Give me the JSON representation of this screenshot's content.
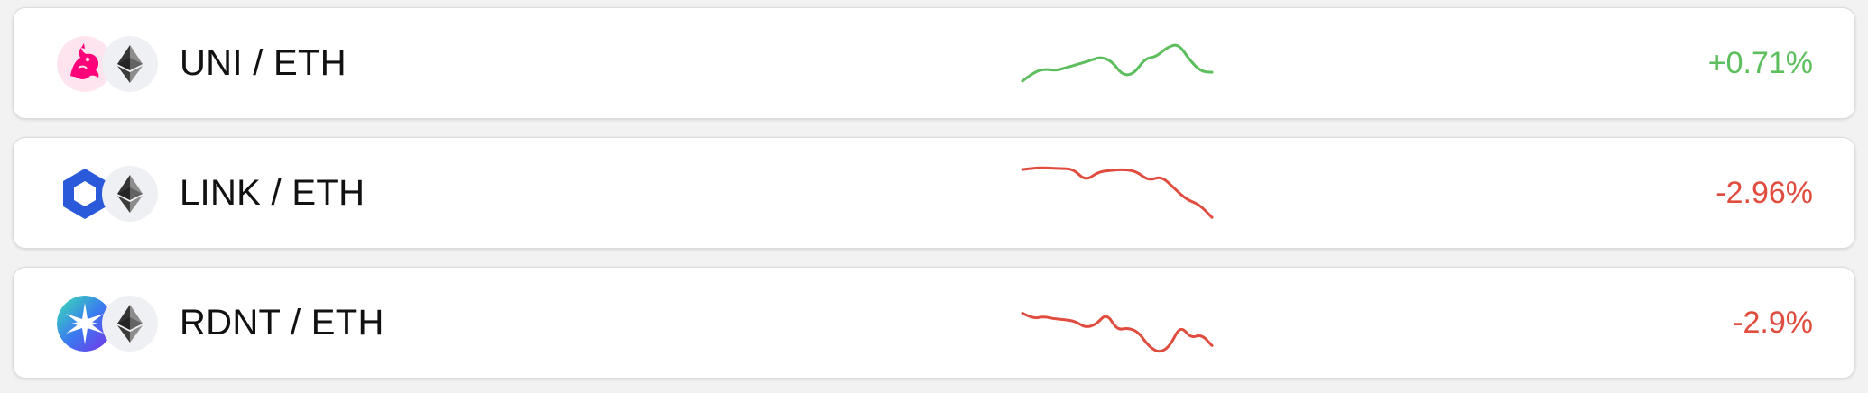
{
  "colors": {
    "up": "#5cbe5c",
    "down": "#e04c3e"
  },
  "pairs": [
    {
      "name": "UNI / ETH",
      "base_icon": "uniswap-unicorn-icon",
      "quote_icon": "ethereum-icon",
      "change": "+0.71%",
      "direction": "up",
      "chart_data": {
        "type": "line",
        "values": [
          30,
          41,
          45,
          43,
          47,
          51,
          55,
          60,
          55,
          37,
          39,
          58,
          60,
          72,
          76,
          56,
          42,
          41
        ]
      }
    },
    {
      "name": "LINK / ETH",
      "base_icon": "chainlink-hexagon-icon",
      "quote_icon": "ethereum-icon",
      "change": "-2.96%",
      "direction": "down",
      "chart_data": {
        "type": "line",
        "values": [
          81,
          83,
          83,
          82,
          82,
          67,
          78,
          80,
          81,
          79,
          67,
          73,
          58,
          44,
          38,
          22
        ]
      }
    },
    {
      "name": "RDNT / ETH",
      "base_icon": "radiant-star-icon",
      "quote_icon": "ethereum-icon",
      "change": "-2.9%",
      "direction": "down",
      "chart_data": {
        "type": "line",
        "values": [
          64,
          57,
          60,
          57,
          56,
          54,
          46,
          50,
          64,
          43,
          46,
          41,
          23,
          15,
          23,
          49,
          33,
          38,
          24
        ]
      }
    }
  ]
}
